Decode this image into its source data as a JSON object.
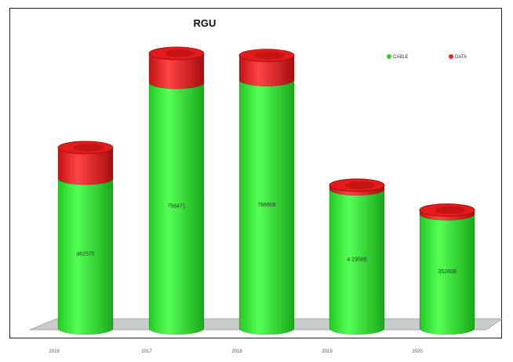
{
  "chart_data": {
    "type": "bar",
    "style": "stacked-3d-cylinder",
    "title": "RGU",
    "categories": [
      "2016",
      "2017",
      "2018",
      "2019",
      "2020"
    ],
    "series": [
      {
        "name": "CABLE",
        "color": "#33ee33",
        "values": [
          462575,
          758471,
          766908,
          429580,
          352808
        ]
      },
      {
        "name": "DATA",
        "color": "#ee2222",
        "values": [
          95000,
          90000,
          75000,
          12000,
          12000
        ]
      }
    ],
    "value_labels": [
      "462575",
      "758471",
      "766908",
      "4 29580",
      "352808"
    ],
    "legend_position": "top-right",
    "grid": false,
    "ylim": [
      0,
      950000
    ]
  }
}
